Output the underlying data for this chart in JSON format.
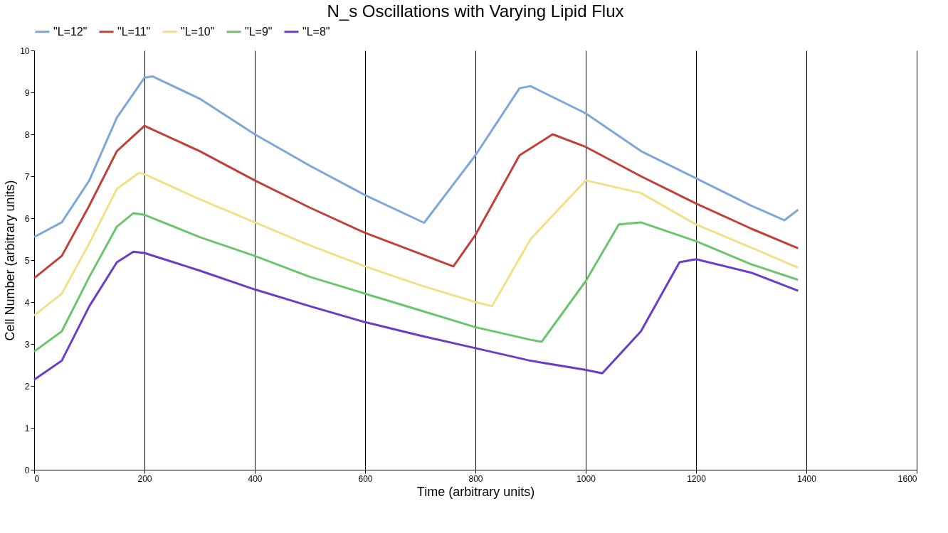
{
  "chart_data": {
    "type": "line",
    "title": "N_s Oscillations with Varying Lipid Flux",
    "xlabel": "Time (arbitrary units)",
    "ylabel": "Cell Number (arbitrary units)",
    "xlim": [
      0,
      1600
    ],
    "xticks": [
      0,
      200,
      400,
      600,
      800,
      1000,
      1200,
      1400,
      1600
    ],
    "ylim": [
      0,
      10
    ],
    "yticks": [
      0,
      1,
      2,
      3,
      4,
      5,
      6,
      7,
      8,
      9,
      10
    ],
    "grid": "x",
    "legend": "top",
    "marker": "none",
    "line_style": "solid",
    "series": [
      {
        "name": "\"L=12\"",
        "color": "#7fa6d9",
        "x": [
          0,
          50,
          100,
          150,
          200,
          215,
          300,
          400,
          500,
          600,
          707,
          800,
          880,
          900,
          1000,
          1100,
          1200,
          1300,
          1360,
          1385
        ],
        "values": [
          5.55,
          5.9,
          6.9,
          8.4,
          9.35,
          9.38,
          8.85,
          8.0,
          7.25,
          6.55,
          5.89,
          7.5,
          9.1,
          9.15,
          8.5,
          7.6,
          6.95,
          6.3,
          5.95,
          6.2
        ]
      },
      {
        "name": "\"L=11\"",
        "color": "#c0403c",
        "x": [
          0,
          50,
          100,
          150,
          200,
          300,
          400,
          500,
          600,
          700,
          760,
          800,
          880,
          940,
          1000,
          1100,
          1200,
          1300,
          1385
        ],
        "values": [
          4.57,
          5.1,
          6.3,
          7.6,
          8.2,
          7.6,
          6.9,
          6.25,
          5.65,
          5.15,
          4.85,
          5.6,
          7.5,
          8.0,
          7.7,
          7.0,
          6.35,
          5.75,
          5.28
        ]
      },
      {
        "name": "\"L=10\"",
        "color": "#f0e08a",
        "x": [
          0,
          50,
          100,
          150,
          190,
          200,
          300,
          400,
          500,
          600,
          700,
          800,
          830,
          900,
          1000,
          1100,
          1200,
          1300,
          1385
        ],
        "values": [
          3.68,
          4.2,
          5.4,
          6.7,
          7.08,
          7.05,
          6.45,
          5.9,
          5.35,
          4.85,
          4.4,
          4.0,
          3.9,
          5.5,
          6.9,
          6.6,
          5.85,
          5.3,
          4.82
        ]
      },
      {
        "name": "\"L=9\"",
        "color": "#6cc46c",
        "x": [
          0,
          50,
          100,
          150,
          180,
          200,
          300,
          400,
          500,
          600,
          700,
          800,
          900,
          920,
          1000,
          1060,
          1100,
          1200,
          1300,
          1385
        ],
        "values": [
          2.82,
          3.3,
          4.6,
          5.8,
          6.12,
          6.08,
          5.55,
          5.1,
          4.6,
          4.2,
          3.8,
          3.4,
          3.1,
          3.05,
          4.5,
          5.85,
          5.9,
          5.45,
          4.9,
          4.53
        ]
      },
      {
        "name": "\"L=8\"",
        "color": "#6a3dc8",
        "x": [
          0,
          50,
          100,
          150,
          180,
          200,
          300,
          400,
          500,
          600,
          700,
          800,
          900,
          1000,
          1030,
          1100,
          1170,
          1200,
          1300,
          1385
        ],
        "values": [
          2.15,
          2.6,
          3.9,
          4.95,
          5.2,
          5.17,
          4.75,
          4.3,
          3.9,
          3.52,
          3.2,
          2.9,
          2.6,
          2.38,
          2.3,
          3.3,
          4.95,
          5.02,
          4.7,
          4.27
        ]
      }
    ]
  }
}
